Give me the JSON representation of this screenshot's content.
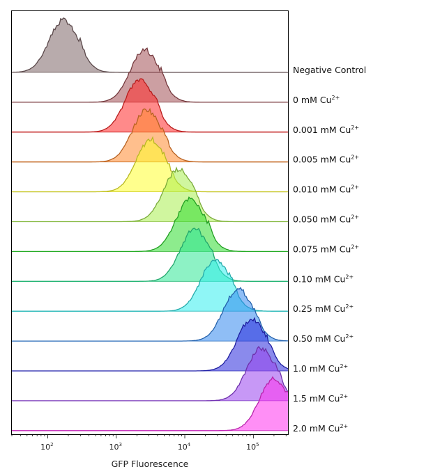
{
  "chart_data": {
    "type": "histogram-ridgeline",
    "xlabel": "GFP Fluorescence",
    "xscale": "log",
    "xlim": [
      30,
      320000
    ],
    "x_ticks": [
      {
        "value": 100,
        "base": "10",
        "exp": "2"
      },
      {
        "value": 1000,
        "base": "10",
        "exp": "3"
      },
      {
        "value": 10000,
        "base": "10",
        "exp": "4"
      },
      {
        "value": 100000,
        "base": "10",
        "exp": "5"
      }
    ],
    "series": [
      {
        "label": "Negative Control",
        "label_sup": "",
        "color": "#7e6668",
        "peak": 170
      },
      {
        "label": "0 mM Cu",
        "label_sup": "2+",
        "color": "#a35056",
        "peak": 2600
      },
      {
        "label": "0.001 mM Cu",
        "label_sup": "2+",
        "color": "#ff2a2a",
        "peak": 2200
      },
      {
        "label": "0.005 mM Cu",
        "label_sup": "2+",
        "color": "#ff8a30",
        "peak": 2800
      },
      {
        "label": "0.010 mM Cu",
        "label_sup": "2+",
        "color": "#ffff30",
        "peak": 3200
      },
      {
        "label": "0.050 mM Cu",
        "label_sup": "2+",
        "color": "#aaee50",
        "peak": 8000
      },
      {
        "label": "0.075 mM Cu",
        "label_sup": "2+",
        "color": "#30dd30",
        "peak": 12000
      },
      {
        "label": "0.10 mM Cu",
        "label_sup": "2+",
        "color": "#30e896",
        "peak": 14000
      },
      {
        "label": "0.25 mM Cu",
        "label_sup": "2+",
        "color": "#33eeee",
        "peak": 28000
      },
      {
        "label": "0.50 mM Cu",
        "label_sup": "2+",
        "color": "#3388ee",
        "peak": 60000
      },
      {
        "label": "1.0 mM Cu",
        "label_sup": "2+",
        "color": "#2a2add",
        "peak": 95000
      },
      {
        "label": "1.5 mM Cu",
        "label_sup": "2+",
        "color": "#9944ee",
        "peak": 130000
      },
      {
        "label": "2.0 mM Cu",
        "label_sup": "2+",
        "color": "#ff33ee",
        "peak": 200000
      }
    ]
  }
}
